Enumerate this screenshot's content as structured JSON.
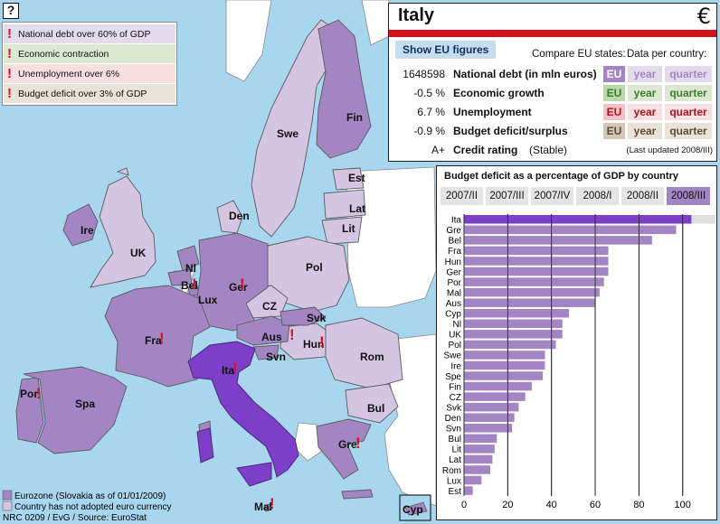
{
  "help": "?",
  "legend": [
    {
      "label": "National debt over 60% of GDP",
      "bg": "#e3dbeb"
    },
    {
      "label": "Economic contraction",
      "bg": "#dde8d3"
    },
    {
      "label": "Unemployment over 6%",
      "bg": "#f7dfe1"
    },
    {
      "label": "Budget deficit over 3% of GDP",
      "bg": "#e9e2d8"
    }
  ],
  "map": {
    "colors": {
      "sea": "#a9d6ef",
      "land": "#ffffff",
      "eurozone": "#a285c2",
      "non_euro": "#d4c6e2",
      "selected": "#7d3fc8",
      "border": "#5b5b5b"
    },
    "labels": [
      "Fin",
      "Swe",
      "Est",
      "Lat",
      "Lit",
      "Den",
      "Ire",
      "UK",
      "Pol",
      "Nl",
      "Bel",
      "Ger",
      "Lux",
      "CZ",
      "Svk",
      "Aus",
      "Hun",
      "Fra",
      "Rom",
      "Svn",
      "Ita",
      "Por",
      "Spa",
      "Bul",
      "Gre",
      "Mal",
      "Cyp"
    ],
    "warnings": [
      "Bel",
      "Ger",
      "Aus",
      "Hun",
      "Fra",
      "Ita",
      "Por",
      "Gre",
      "Mal"
    ],
    "footer": {
      "eurozone": "Eurozone (Slovakia as of 01/01/2009)",
      "non_euro": "Country has not adopted euro currency",
      "credit": "NRC 0209 / EvG / Source: EuroStat"
    }
  },
  "info": {
    "country": "Italy",
    "currency_icon": "€",
    "show_eu": "Show EU figures",
    "compare_label": "Compare EU states:",
    "data_per_label": "Data per country:",
    "rows": [
      {
        "value": "1648598",
        "name": "National debt (in mln euros)",
        "color": "#a285c2",
        "active": "#a285c2",
        "inactive": "#e3dbeb"
      },
      {
        "value": "-0.5 %",
        "name": "Economic growth",
        "color": "#3d7b2e",
        "active": "#bcd8ab",
        "inactive": "#dde8d3"
      },
      {
        "value": "6.7 %",
        "name": "Unemployment",
        "color": "#a5151f",
        "active": "#f4c2c6",
        "inactive": "#f7dfe1"
      },
      {
        "value": "-0.9 %",
        "name": "Budget deficit/surplus",
        "color": "#5c4b35",
        "active": "#d2c6b5",
        "inactive": "#e9e2d8"
      }
    ],
    "btn": {
      "eu": "EU",
      "year": "year",
      "quarter": "quarter"
    },
    "rating": {
      "value": "A+",
      "name": "Credit rating",
      "status": "(Stable)",
      "updated": "(Last updated 2008/III)"
    }
  },
  "chart_data": {
    "type": "bar",
    "title": "Budget deficit as a percentage of GDP by country",
    "periods": [
      "2007/II",
      "2007/III",
      "2007/IV",
      "2008/I",
      "2008/II",
      "2008/III"
    ],
    "selected_period": "2008/III",
    "categories": [
      "Ita",
      "Gre",
      "Bel",
      "Fra",
      "Hun",
      "Ger",
      "Por",
      "Mal",
      "Aus",
      "Cyp",
      "Nl",
      "UK",
      "Pol",
      "Swe",
      "Ire",
      "Spe",
      "Fin",
      "CZ",
      "Svk",
      "Den",
      "Svn",
      "Bul",
      "Lit",
      "Lat",
      "Rom",
      "Lux",
      "Est"
    ],
    "values": [
      104,
      97,
      86,
      66,
      66,
      66,
      64,
      62,
      60,
      48,
      45,
      45,
      42,
      37,
      37,
      36,
      31,
      28,
      25,
      23,
      22,
      15,
      14,
      13,
      12,
      8,
      4
    ],
    "highlight": "Ita",
    "xlim": [
      0,
      115
    ],
    "xticks": [
      0,
      20,
      40,
      60,
      80,
      100
    ],
    "colors": {
      "bar": "#a285c2",
      "highlight": "#7d3fc8",
      "track": "#e0e0e0",
      "tab": "#e4e4e4",
      "tab_selected": "#a285c2"
    }
  }
}
